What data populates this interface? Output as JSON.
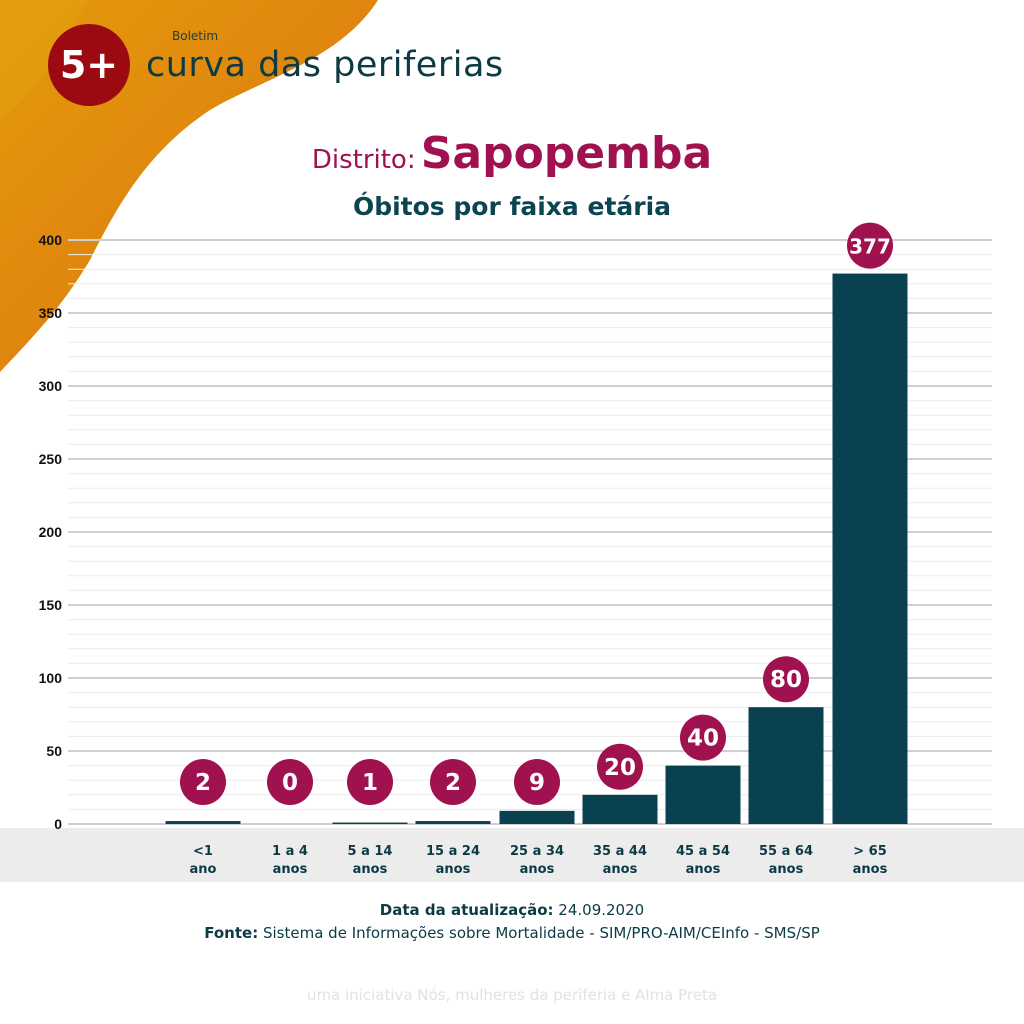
{
  "header": {
    "logo_text": "5+",
    "kicker": "Boletim",
    "brand": "curva das periferias"
  },
  "title": {
    "label": "Distrito:",
    "district": "Sapopemba"
  },
  "colors": {
    "bar": "#0a4150",
    "bubble": "#a0124f",
    "band": "#ececec",
    "orange": "#e08a10"
  },
  "chart_data": {
    "type": "bar",
    "title": "Óbitos por faixa etária",
    "categories": [
      [
        "<1",
        "ano"
      ],
      [
        "1 a 4",
        "anos"
      ],
      [
        "5 a 14",
        "anos"
      ],
      [
        "15 a 24",
        "anos"
      ],
      [
        "25 a 34",
        "anos"
      ],
      [
        "35 a 44",
        "anos"
      ],
      [
        "45 a 54",
        "anos"
      ],
      [
        "55 a 64",
        "anos"
      ],
      [
        "> 65",
        "anos"
      ]
    ],
    "values": [
      2,
      0,
      1,
      2,
      9,
      20,
      40,
      80,
      377
    ],
    "ylim": [
      0,
      400
    ],
    "yticks": [
      0,
      50,
      100,
      150,
      200,
      250,
      300,
      350,
      400
    ],
    "grid": true,
    "xlabel": "",
    "ylabel": ""
  },
  "footer": {
    "update_label": "Data da atualização:",
    "update_value": "24.09.2020",
    "source_label": "Fonte:",
    "source_value": "Sistema de Informações sobre Mortalidade - SIM/PRO-AIM/CEInfo - SMS/SP",
    "credit": "uma iniciativa Nós, mulheres da periferia e Alma Preta"
  }
}
